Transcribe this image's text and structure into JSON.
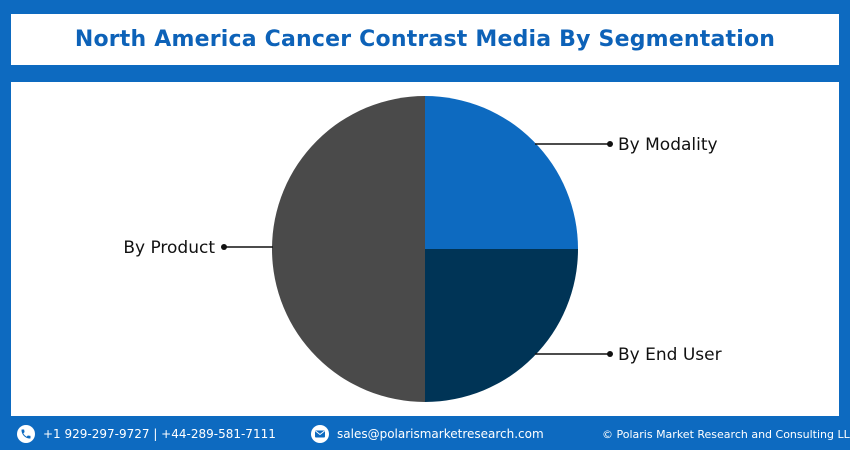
{
  "header": {
    "title": "North America Cancer Contrast Media By Segmentation"
  },
  "chart_data": {
    "type": "pie",
    "slices": [
      {
        "label": "By Modality",
        "value": 25,
        "color": "#0d6ac0"
      },
      {
        "label": "By End User",
        "value": 25,
        "color": "#003456"
      },
      {
        "label": "By Product",
        "value": 50,
        "color": "#4a4a4a"
      }
    ],
    "start_angle_deg": 0,
    "direction": "clockwise"
  },
  "footer": {
    "phone": "+1 929-297-9727 | +44-289-581-7111",
    "email": "sales@polarismarketresearch.com",
    "copyright": "© Polaris Market Research and Consulting LLP",
    "phone_icon": "phone-icon",
    "email_icon": "email-icon",
    "text_color": "#ffffff"
  },
  "colors": {
    "background": "#0d6ac0",
    "title": "#0d62b8",
    "label": "#111111"
  }
}
